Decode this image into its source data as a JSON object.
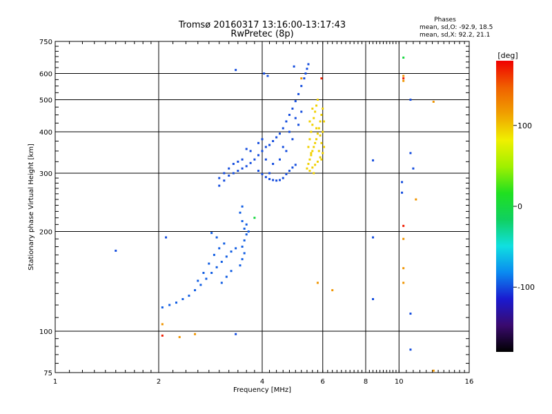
{
  "title": "Tromsø 20160317 13:16:00-13:17:43",
  "subtitle": "RwPretec (8p)",
  "phase_stats": {
    "heading": "Phases",
    "line_o": "mean, sd,O: -92.9, 18.5",
    "line_x": "mean, sd,X:  92.2, 21.1"
  },
  "colorbar": {
    "unit": "[deg]",
    "range": [
      -180,
      180
    ],
    "ticks": [
      100,
      0,
      -100
    ],
    "tick_labels": [
      "100",
      "0",
      "-100"
    ],
    "stops": [
      "#000000",
      "#3a0a6e",
      "#1a1ad0",
      "#0a8af0",
      "#10e0e0",
      "#10d060",
      "#20e020",
      "#a0f000",
      "#f0f000",
      "#f0a000",
      "#f06000",
      "#f00000"
    ]
  },
  "chart_data": {
    "type": "scatter",
    "title": "Tromsø 20160317 13:16:00-13:17:43",
    "subtitle": "RwPretec (8p)",
    "xlabel": "Frequency [MHz]",
    "ylabel": "Stationary phase Virtual Height [km]",
    "xscale": "log",
    "yscale": "log",
    "xlim": [
      1,
      16
    ],
    "ylim": [
      75,
      750
    ],
    "x_ticks": [
      1,
      2,
      4,
      6,
      8,
      10,
      16
    ],
    "x_tick_labels": [
      "1",
      "2",
      "4",
      "6",
      "8",
      "10",
      "16"
    ],
    "y_ticks": [
      75,
      100,
      200,
      300,
      400,
      500,
      600,
      750
    ],
    "y_tick_labels": [
      "75",
      "100",
      "200",
      "300",
      "400",
      "500",
      "600",
      "750"
    ],
    "grid": true,
    "color_meaning": "phase [deg]",
    "traces": [
      {
        "name": "",
        "phase": -95,
        "points": [
          [
            2.05,
            118
          ],
          [
            2.15,
            120
          ],
          [
            2.25,
            122
          ],
          [
            2.35,
            125
          ],
          [
            2.45,
            128
          ],
          [
            2.55,
            133
          ],
          [
            2.65,
            138
          ],
          [
            2.75,
            144
          ],
          [
            2.85,
            150
          ],
          [
            2.95,
            156
          ],
          [
            3.05,
            162
          ],
          [
            3.15,
            168
          ],
          [
            3.25,
            174
          ],
          [
            3.35,
            178
          ],
          [
            2.6,
            142
          ],
          [
            2.7,
            150
          ],
          [
            2.8,
            160
          ],
          [
            2.9,
            170
          ],
          [
            3.0,
            178
          ],
          [
            3.1,
            184
          ],
          [
            2.95,
            192
          ],
          [
            2.85,
            198
          ],
          [
            3.05,
            140
          ],
          [
            3.15,
            146
          ],
          [
            3.25,
            152
          ],
          [
            3.45,
            158
          ],
          [
            3.5,
            165
          ],
          [
            3.55,
            172
          ],
          [
            3.5,
            180
          ],
          [
            3.55,
            188
          ],
          [
            3.6,
            196
          ],
          [
            3.55,
            204
          ],
          [
            3.5,
            215
          ],
          [
            3.45,
            228
          ],
          [
            3.5,
            238
          ],
          [
            3.6,
            210
          ],
          [
            3.65,
            200
          ]
        ]
      },
      {
        "name": "",
        "phase": -100,
        "points": [
          [
            3.0,
            275
          ],
          [
            3.1,
            285
          ],
          [
            3.2,
            295
          ],
          [
            3.3,
            300
          ],
          [
            3.4,
            305
          ],
          [
            3.5,
            310
          ],
          [
            3.6,
            315
          ],
          [
            3.7,
            322
          ],
          [
            3.8,
            330
          ],
          [
            3.9,
            340
          ],
          [
            4.0,
            350
          ],
          [
            4.1,
            360
          ],
          [
            3.9,
            305
          ],
          [
            4.0,
            298
          ],
          [
            4.1,
            292
          ],
          [
            4.2,
            288
          ],
          [
            4.3,
            286
          ],
          [
            4.4,
            285
          ],
          [
            4.5,
            286
          ],
          [
            4.6,
            290
          ],
          [
            4.7,
            298
          ],
          [
            4.8,
            305
          ],
          [
            4.9,
            312
          ],
          [
            5.0,
            318
          ],
          [
            4.2,
            365
          ],
          [
            4.3,
            375
          ],
          [
            4.4,
            385
          ],
          [
            4.5,
            395
          ],
          [
            4.6,
            410
          ],
          [
            4.7,
            430
          ],
          [
            4.8,
            450
          ],
          [
            4.9,
            470
          ],
          [
            5.0,
            495
          ],
          [
            5.1,
            520
          ],
          [
            5.2,
            550
          ],
          [
            5.3,
            580
          ],
          [
            5.4,
            620
          ],
          [
            5.35,
            600
          ],
          [
            5.45,
            640
          ],
          [
            3.2,
            310
          ],
          [
            3.3,
            320
          ],
          [
            3.5,
            330
          ],
          [
            3.7,
            350
          ],
          [
            4.0,
            380
          ],
          [
            4.2,
            300
          ],
          [
            4.5,
            330
          ],
          [
            4.7,
            350
          ],
          [
            4.9,
            380
          ],
          [
            5.1,
            420
          ],
          [
            5.2,
            460
          ],
          [
            5.0,
            440
          ],
          [
            4.8,
            400
          ],
          [
            4.6,
            360
          ],
          [
            4.3,
            320
          ],
          [
            4.1,
            330
          ],
          [
            3.9,
            370
          ],
          [
            3.6,
            355
          ],
          [
            3.4,
            325
          ],
          [
            3.1,
            300
          ],
          [
            3.0,
            290
          ],
          [
            4.15,
            590
          ],
          [
            3.35,
            615
          ],
          [
            4.05,
            600
          ],
          [
            4.95,
            630
          ]
        ]
      },
      {
        "name": "",
        "phase": 95,
        "points": [
          [
            5.4,
            310
          ],
          [
            5.45,
            320
          ],
          [
            5.5,
            330
          ],
          [
            5.55,
            340
          ],
          [
            5.6,
            350
          ],
          [
            5.65,
            360
          ],
          [
            5.7,
            370
          ],
          [
            5.75,
            380
          ],
          [
            5.8,
            395
          ],
          [
            5.85,
            410
          ],
          [
            5.9,
            430
          ],
          [
            5.95,
            450
          ],
          [
            6.0,
            470
          ],
          [
            5.5,
            305
          ],
          [
            5.6,
            312
          ],
          [
            5.7,
            318
          ],
          [
            5.8,
            325
          ],
          [
            5.9,
            335
          ],
          [
            6.0,
            345
          ],
          [
            5.45,
            360
          ],
          [
            5.5,
            380
          ],
          [
            5.55,
            400
          ],
          [
            5.6,
            420
          ],
          [
            5.65,
            440
          ],
          [
            5.7,
            460
          ],
          [
            5.75,
            480
          ],
          [
            5.8,
            500
          ],
          [
            5.9,
            390
          ],
          [
            5.95,
            370
          ],
          [
            6.0,
            400
          ],
          [
            6.05,
            430
          ],
          [
            5.65,
            300
          ],
          [
            5.85,
            350
          ],
          [
            5.55,
            345
          ],
          [
            5.75,
            410
          ],
          [
            5.95,
            330
          ],
          [
            6.05,
            360
          ],
          [
            5.5,
            430
          ],
          [
            5.6,
            470
          ]
        ]
      },
      {
        "name": "",
        "phase": -100,
        "points": [
          [
            1.5,
            175
          ],
          [
            2.1,
            192
          ],
          [
            3.35,
            98
          ],
          [
            8.4,
            328
          ],
          [
            8.4,
            192
          ],
          [
            8.4,
            125
          ],
          [
            10.2,
            282
          ],
          [
            10.2,
            262
          ],
          [
            10.8,
            500
          ],
          [
            10.8,
            345
          ],
          [
            10.8,
            113
          ],
          [
            10.8,
            88
          ],
          [
            11.0,
            310
          ]
        ]
      },
      {
        "name": "",
        "phase": 120,
        "points": [
          [
            2.05,
            105
          ],
          [
            2.3,
            96
          ],
          [
            2.55,
            98
          ],
          [
            5.2,
            580
          ],
          [
            5.8,
            140
          ],
          [
            6.4,
            133
          ],
          [
            10.3,
            570
          ],
          [
            10.3,
            190
          ],
          [
            10.3,
            155
          ],
          [
            10.3,
            140
          ],
          [
            10.3,
            590
          ],
          [
            11.2,
            250
          ],
          [
            12.6,
            493
          ],
          [
            12.6,
            76
          ]
        ]
      },
      {
        "name": "",
        "phase": 170,
        "points": [
          [
            10.3,
            208
          ],
          [
            2.05,
            97
          ],
          [
            5.95,
            580
          ],
          [
            10.3,
            580
          ]
        ]
      },
      {
        "name": "",
        "phase": 0,
        "points": [
          [
            10.3,
            670
          ],
          [
            3.8,
            220
          ]
        ]
      }
    ]
  }
}
